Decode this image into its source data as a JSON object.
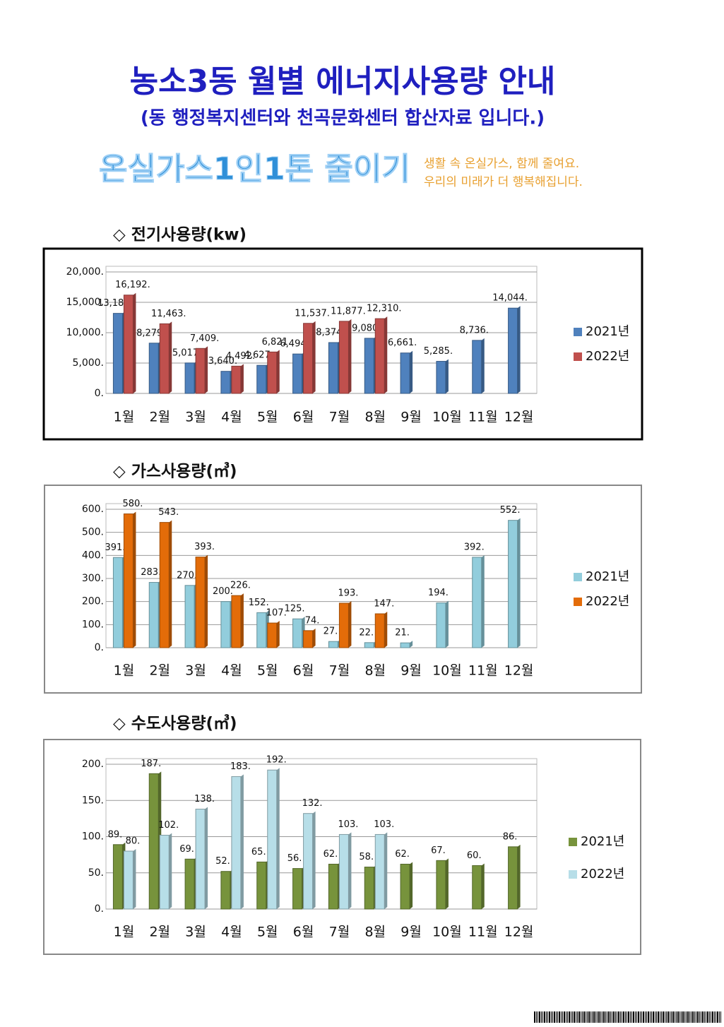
{
  "header": {
    "title": "농소3동 월별 에너지사용량 안내",
    "subtitle": "(동 행정복지센터와 천곡문화센터 합산자료 입니다.)"
  },
  "banner": {
    "slogan": "온실가스1인1톤 줄이기",
    "line1": "생활 속 온실가스, 함께 줄여요.",
    "line2": "우리의 미래가 더 행복해집니다."
  },
  "chart_data": [
    {
      "type": "bar",
      "title": "◇ 전기사용량(kw)",
      "categories": [
        "1월",
        "2월",
        "3월",
        "4월",
        "5월",
        "6월",
        "7월",
        "8월",
        "9월",
        "10월",
        "11월",
        "12월"
      ],
      "series": [
        {
          "name": "2021년",
          "color": "#4f81bd",
          "values": [
            13180,
            8279,
            5017,
            3640,
            4627,
            6494,
            8374,
            9080,
            6661,
            5285,
            8736,
            14044
          ],
          "value_labels": [
            "13,180.",
            "8,279.",
            "5,017.",
            "3,640.",
            "4,627.",
            "6,494.",
            "8,374.",
            "9,080.",
            "6,661.",
            "5,285.",
            "8,736.",
            "14,044."
          ]
        },
        {
          "name": "2022년",
          "color": "#c0504d",
          "values": [
            16192,
            11463,
            7409,
            4492,
            6821,
            11537,
            11877,
            12310,
            null,
            null,
            null,
            null
          ],
          "value_labels": [
            "16,192.",
            "11,463.",
            "7,409.",
            "4,492.",
            "6,821.",
            "11,537.",
            "11,877.",
            "12,310.",
            null,
            null,
            null,
            null
          ]
        }
      ],
      "ylim": [
        0,
        20000
      ],
      "yticks": [
        {
          "value": 0,
          "label": "0."
        },
        {
          "value": 5000,
          "label": "5,000."
        },
        {
          "value": 10000,
          "label": "10,000."
        },
        {
          "value": 15000,
          "label": "15,000."
        },
        {
          "value": 20000,
          "label": "20,000."
        }
      ],
      "grid": true,
      "legend": "right"
    },
    {
      "type": "bar",
      "title": "◇ 가스사용량(㎥)",
      "categories": [
        "1월",
        "2월",
        "3월",
        "4월",
        "5월",
        "6월",
        "7월",
        "8월",
        "9월",
        "10월",
        "11월",
        "12월"
      ],
      "series": [
        {
          "name": "2021년",
          "color": "#92cddc",
          "values": [
            391,
            283,
            270,
            200,
            152,
            125,
            27,
            22,
            21,
            194,
            392,
            552
          ],
          "value_labels": [
            "391.",
            "283.",
            "270.",
            "200.",
            "152.",
            "125.",
            "27.",
            "22.",
            "21.",
            "194.",
            "392.",
            "552."
          ]
        },
        {
          "name": "2022년",
          "color": "#e36c09",
          "values": [
            580,
            543,
            393,
            226,
            107,
            74,
            193,
            147,
            null,
            null,
            null,
            null
          ],
          "value_labels": [
            "580.",
            "543.",
            "393.",
            "226.",
            "107.",
            "74.",
            "193.",
            "147.",
            null,
            null,
            null,
            null
          ]
        }
      ],
      "ylim": [
        0,
        600
      ],
      "yticks": [
        {
          "value": 0,
          "label": "0."
        },
        {
          "value": 100,
          "label": "100."
        },
        {
          "value": 200,
          "label": "200."
        },
        {
          "value": 300,
          "label": "300."
        },
        {
          "value": 400,
          "label": "400."
        },
        {
          "value": 500,
          "label": "500."
        },
        {
          "value": 600,
          "label": "600."
        }
      ],
      "grid": true,
      "legend": "right"
    },
    {
      "type": "bar",
      "title": "◇ 수도사용량(㎥)",
      "categories": [
        "1월",
        "2월",
        "3월",
        "4월",
        "5월",
        "6월",
        "7월",
        "8월",
        "9월",
        "10월",
        "11월",
        "12월"
      ],
      "series": [
        {
          "name": "2021년",
          "color": "#77933c",
          "values": [
            89,
            187,
            69,
            52,
            65,
            56,
            62,
            58,
            62,
            67,
            60,
            86
          ],
          "value_labels": [
            "89.",
            "187.",
            "69.",
            "52.",
            "65.",
            "56.",
            "62.",
            "58.",
            "62.",
            "67.",
            "60.",
            "86."
          ]
        },
        {
          "name": "2022년",
          "color": "#b7dee8",
          "values": [
            80,
            102,
            138,
            183,
            192,
            132,
            103,
            103,
            null,
            null,
            null,
            null
          ],
          "value_labels": [
            "80.",
            "102.",
            "138.",
            "183.",
            "192.",
            "132.",
            "103.",
            "103.",
            null,
            null,
            null,
            null
          ]
        }
      ],
      "ylim": [
        0,
        200
      ],
      "yticks": [
        {
          "value": 0,
          "label": "0."
        },
        {
          "value": 50,
          "label": "50."
        },
        {
          "value": 100,
          "label": "100."
        },
        {
          "value": 150,
          "label": "150."
        },
        {
          "value": 200,
          "label": "200."
        }
      ],
      "grid": true,
      "legend": "right"
    }
  ]
}
